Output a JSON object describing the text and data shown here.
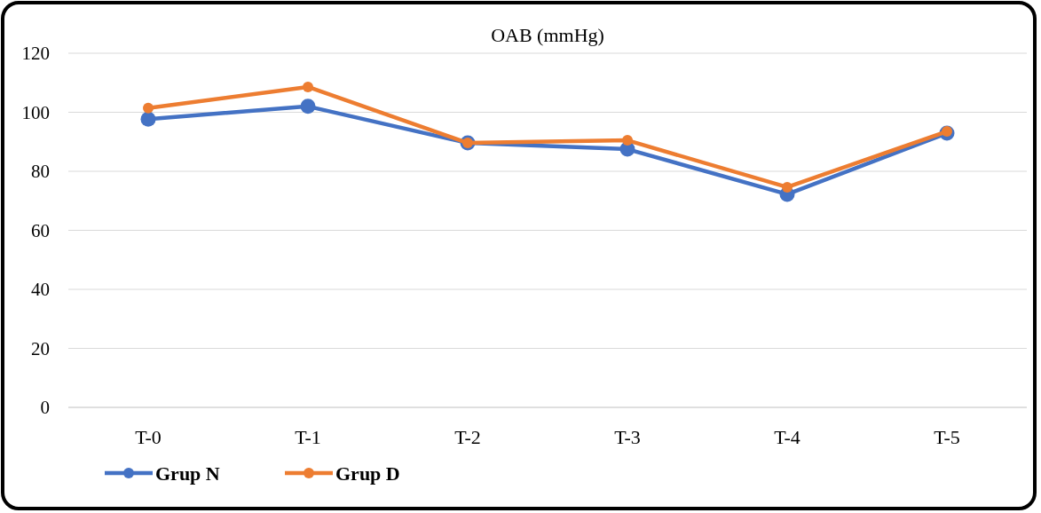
{
  "chart_data": {
    "type": "line",
    "title": "OAB (mmHg)",
    "categories": [
      "T-0",
      "T-1",
      "T-2",
      "T-3",
      "T-4",
      "T-5"
    ],
    "series": [
      {
        "name": "Grup N",
        "color": "#4472c4",
        "values": [
          97.7,
          102,
          89.6,
          87.5,
          72.2,
          92.9
        ]
      },
      {
        "name": "Grup D",
        "color": "#ed7d31",
        "values": [
          101.4,
          108.6,
          89.6,
          90.5,
          74.6,
          93.5
        ]
      }
    ],
    "ylim": [
      0,
      120
    ],
    "yticks": [
      0,
      20,
      40,
      60,
      80,
      100,
      120
    ],
    "grid": "y",
    "legend": "bottom left",
    "marker": "circle",
    "line_style": "solid"
  }
}
